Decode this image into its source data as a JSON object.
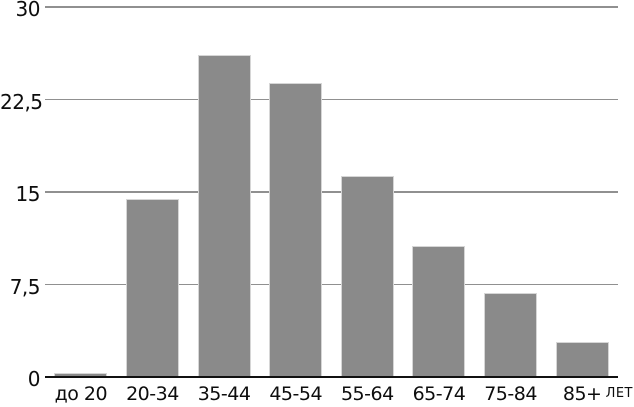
{
  "chart_data": {
    "type": "bar",
    "title": "",
    "xlabel": "лет",
    "ylabel": "",
    "categories": [
      "до 20",
      "20-34",
      "35-44",
      "45-54",
      "55-64",
      "65-74",
      "75-84",
      "85+"
    ],
    "values": [
      0.3,
      14.4,
      26.1,
      23.8,
      16.3,
      10.6,
      6.8,
      2.8
    ],
    "ylim": [
      0,
      30
    ],
    "yticks": [
      0,
      7.5,
      15,
      22.5,
      30
    ],
    "ytick_labels": [
      "0",
      "7,5",
      "15",
      "22,5",
      "30"
    ],
    "grid": true,
    "legend": false,
    "colors": {
      "bar_fill": "#8a8a8a",
      "bar_edge": "#d6d6d6",
      "gridline": "#909090",
      "axis": "#111111",
      "text": "#0d0d0d",
      "background": "#ffffff"
    }
  }
}
